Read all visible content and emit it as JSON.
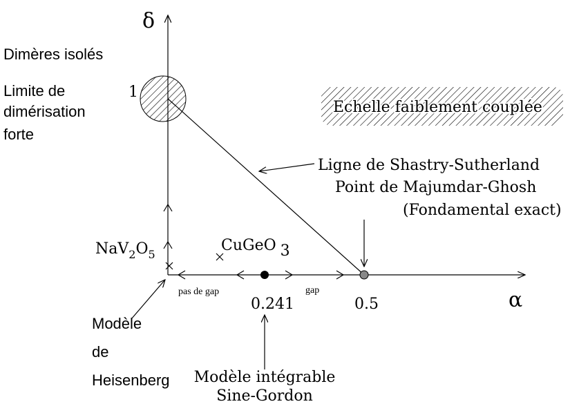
{
  "axes": {
    "y": "δ",
    "x": "α",
    "one": "1",
    "p241": "0.241",
    "p05": "0.5"
  },
  "left": {
    "dimers": "Dimères isolés",
    "limit": [
      "Limite de",
      "dimérisation",
      "forte"
    ]
  },
  "ladder": "Echelle faiblement couplée",
  "shastry": "Ligne de Shastry-Sutherland",
  "mg": [
    "Point de Majumdar-Ghosh",
    "(Fondamental exact)"
  ],
  "navo": [
    "NaV",
    "2",
    "O",
    "5"
  ],
  "cugeo": [
    "CuGeO",
    "3"
  ],
  "gap": {
    "no": "pas de gap",
    "yes": "gap"
  },
  "heis": [
    "Modèle",
    "de",
    "Heisenberg"
  ],
  "sg": [
    "Modèle intégrable",
    "Sine-Gordon"
  ]
}
